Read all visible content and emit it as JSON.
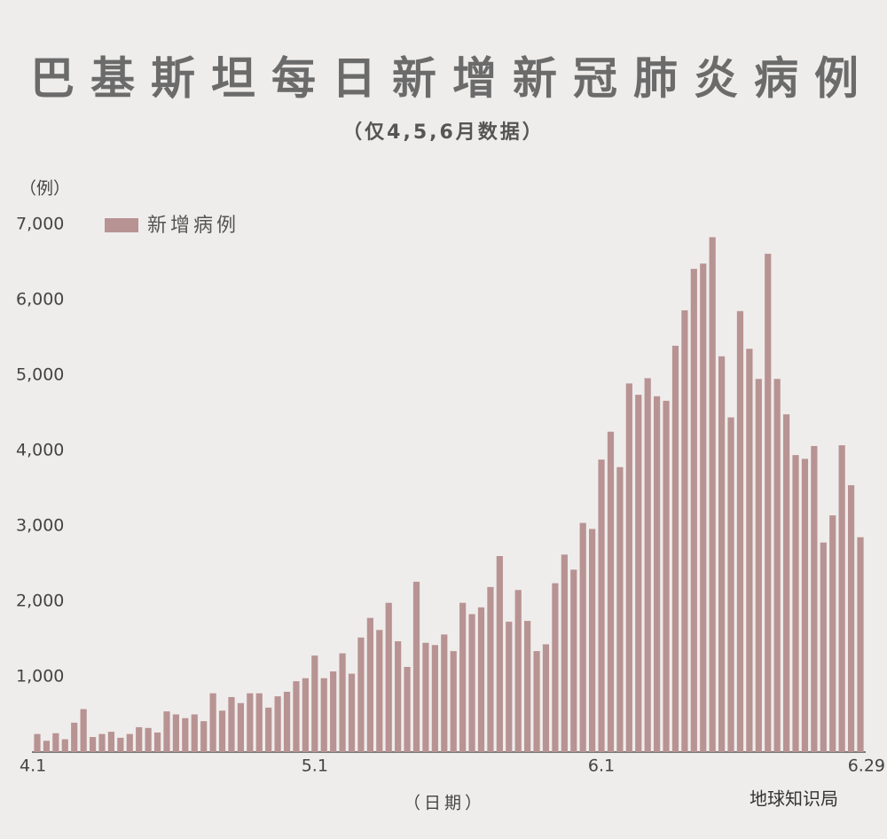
{
  "chart_data": {
    "type": "bar",
    "title": "巴基斯坦每日新增新冠肺炎病例",
    "subtitle": "（仅4,5,6月数据）",
    "y_label": "（例）",
    "x_label": "（日期）",
    "watermark": "地球知识局",
    "categories": [
      "4.1",
      null,
      null,
      null,
      null,
      null,
      null,
      null,
      null,
      null,
      null,
      null,
      null,
      null,
      null,
      null,
      null,
      null,
      null,
      null,
      null,
      null,
      null,
      null,
      null,
      null,
      null,
      null,
      null,
      null,
      "5.1",
      null,
      null,
      null,
      null,
      null,
      null,
      null,
      null,
      null,
      null,
      null,
      null,
      null,
      null,
      null,
      null,
      null,
      null,
      null,
      null,
      null,
      null,
      null,
      null,
      null,
      null,
      null,
      null,
      null,
      null,
      "6.1",
      null,
      null,
      null,
      null,
      null,
      null,
      null,
      null,
      null,
      null,
      null,
      null,
      null,
      null,
      null,
      null,
      null,
      null,
      null,
      null,
      null,
      null,
      null,
      null,
      null,
      null,
      null,
      "6.29"
    ],
    "series": [
      {
        "name": "新增病例",
        "color": "#b89393",
        "values": [
          240,
          150,
          250,
          170,
          390,
          570,
          200,
          240,
          270,
          190,
          240,
          330,
          320,
          260,
          540,
          500,
          450,
          500,
          410,
          780,
          550,
          730,
          650,
          780,
          780,
          590,
          740,
          800,
          940,
          980,
          1280,
          980,
          1070,
          1310,
          1040,
          1520,
          1780,
          1620,
          1980,
          1470,
          1130,
          2260,
          1450,
          1420,
          1560,
          1340,
          1980,
          1830,
          1920,
          2190,
          2600,
          1730,
          2150,
          1740,
          1340,
          1430,
          2240,
          2620,
          2420,
          3040,
          2960,
          3880,
          4250,
          3780,
          4890,
          4740,
          4960,
          4720,
          4660,
          5390,
          5860,
          6410,
          6480,
          6830,
          5250,
          4440,
          5850,
          5350,
          4950,
          6610,
          4950,
          4480,
          3940,
          3890,
          4060,
          2780,
          3140,
          4070,
          3540,
          2850
        ]
      }
    ],
    "ylim": [
      0,
      7000
    ],
    "yticks": [
      {
        "value": 1000,
        "label": "1,000"
      },
      {
        "value": 2000,
        "label": "2,000"
      },
      {
        "value": 3000,
        "label": "3,000"
      },
      {
        "value": 4000,
        "label": "4,000"
      },
      {
        "value": 5000,
        "label": "5,000"
      },
      {
        "value": 6000,
        "label": "6,000"
      },
      {
        "value": 7000,
        "label": "7,000"
      }
    ],
    "grid": false
  }
}
